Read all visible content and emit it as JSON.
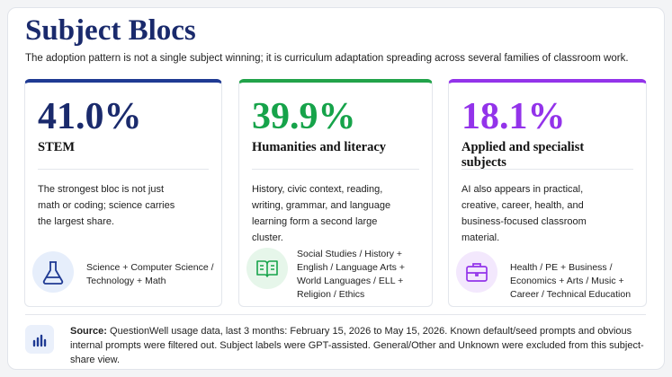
{
  "header": {
    "title": "Subject Blocs",
    "subtitle": "The adoption pattern is not a single subject winning; it is curriculum adaptation spreading across several families of classroom work."
  },
  "cards": [
    {
      "share": "41.0%",
      "label": "STEM",
      "description": "The strongest bloc is not just math or coding; science carries the largest share.",
      "subjects": "Science + Computer Science / Technology + Math"
    },
    {
      "share": "39.9%",
      "label": "Humanities and literacy",
      "description": "History, civic context, reading, writing, grammar, and language learning form a second large cluster.",
      "subjects": "Social Studies / History + English / Language Arts + World Languages / ELL + Religion / Ethics"
    },
    {
      "share": "18.1%",
      "label": "Applied and specialist subjects",
      "description": "AI also appears in practical, creative, career, health, and business-focused classroom material.",
      "subjects": "Health / PE + Business / Economics + Arts / Music + Career / Technical Education"
    }
  ],
  "source": {
    "label": "Source:",
    "text": "QuestionWell usage data, last 3 months: February 15, 2026 to May 15, 2026. Known default/seed prompts and obvious internal prompts were filtered out. Subject labels were GPT-assisted. General/Other and Unknown were excluded from this subject-share view."
  }
}
